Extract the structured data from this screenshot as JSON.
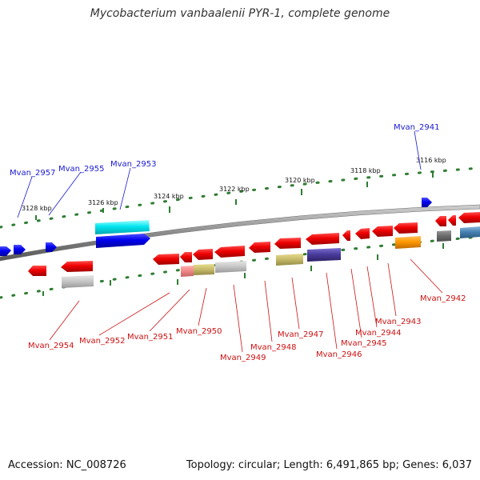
{
  "title": "Mycobacterium vanbaalenii PYR-1, complete genome",
  "footer": {
    "accession": "Accession: NC_008726",
    "summary": "Topology: circular; Length: 6,491,865 bp; Genes: 6,037"
  },
  "colors": {
    "backbone": "#8c8c8c",
    "ticks": "#2e7d32",
    "forward_label": "#1a1ad1",
    "reverse_label": "#cc1111"
  },
  "ruler": {
    "labels": [
      "3128 kbp",
      "3126 kbp",
      "3124 kbp",
      "3122 kbp",
      "3120 kbp",
      "3118 kbp",
      "3116 kbp"
    ]
  },
  "genes": {
    "forward_labels": [
      "Mvan_2957",
      "Mvan_2955",
      "Mvan_2953",
      "Mvan_2941"
    ],
    "reverse_labels": [
      "Mvan_2954",
      "Mvan_2952",
      "Mvan_2951",
      "Mvan_2950",
      "Mvan_2949",
      "Mvan_2948",
      "Mvan_2947",
      "Mvan_2946",
      "Mvan_2945",
      "Mvan_2944",
      "Mvan_2943",
      "Mvan_2942"
    ]
  }
}
